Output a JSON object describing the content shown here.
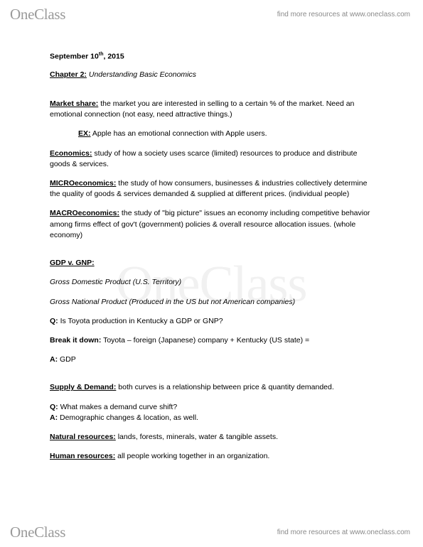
{
  "brand": {
    "part1": "One",
    "part2": "Class"
  },
  "tagline": "find more resources at www.oneclass.com",
  "watermark": "OneClass",
  "date_prefix": "September 10",
  "date_ord": "th",
  "date_suffix": ", 2015",
  "chapter_label": "Chapter 2:",
  "chapter_title": " Understanding Basic Economics",
  "market_share_term": "Market share:",
  "market_share_body": " the market you are interested in selling to a certain % of the market. Need an emotional connection (not easy, need attractive things.)",
  "ex_label": "EX:",
  "ex_body": " Apple has an emotional connection with Apple users.",
  "economics_term": "Economics:",
  "economics_body": " study of how a society uses scarce (limited) resources to produce and distribute goods & services.",
  "micro_term": "MICROeconomics:",
  "micro_body": " the study of how consumers, businesses & industries collectively determine the quality of goods & services demanded & supplied at different prices. (individual people)",
  "macro_term": "MACROeconomics:",
  "macro_body": " the study of \"big picture\" issues an economy including competitive behavior among firms effect of gov't (government) policies & overall resource allocation issues. (whole economy)",
  "gdp_heading": "GDP v. GNP:",
  "gdp_line": "Gross Domestic Product (U.S. Territory)",
  "gnp_line": "Gross National Product (Produced in the US but not American companies)",
  "q1_label": "Q:",
  "q1_body": " Is Toyota production in Kentucky a GDP or GNP?",
  "break_label": "Break it down:",
  "break_body": " Toyota – foreign (Japanese) company + Kentucky (US state) =",
  "a1_label": "A:",
  "a1_body": " GDP",
  "supply_term": "Supply & Demand:",
  "supply_body": " both curves is a relationship between price & quantity demanded.",
  "q2_label": "Q:",
  "q2_body": " What makes a demand curve shift?",
  "a2_label": "A:",
  "a2_body": " Demographic changes & location, as well.",
  "natural_term": "Natural resources:",
  "natural_body": " lands, forests, minerals, water & tangible assets.",
  "human_term": "Human resources:",
  "human_body": " all people working together in an organization."
}
